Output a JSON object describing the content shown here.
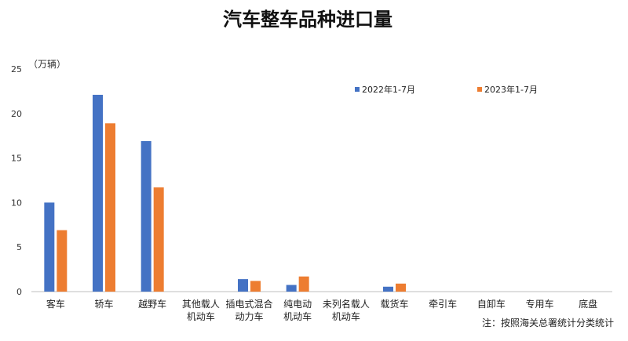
{
  "chart_data": {
    "type": "bar",
    "title": "汽车整车品种进口量",
    "unit_label": "（万辆）",
    "note": "注：按照海关总署统计分类统计",
    "ylim": [
      0,
      25
    ],
    "yticks": [
      0,
      5,
      10,
      15,
      20,
      25
    ],
    "grid": false,
    "legend_position": "top-right",
    "categories": [
      [
        "客车"
      ],
      [
        "轿车"
      ],
      [
        "越野车"
      ],
      [
        "其他载人",
        "机动车"
      ],
      [
        "插电式混合",
        "动力车"
      ],
      [
        "纯电动",
        "机动车"
      ],
      [
        "未列名载人",
        "机动车"
      ],
      [
        "载货车"
      ],
      [
        "牵引车"
      ],
      [
        "自卸车"
      ],
      [
        "专用车"
      ],
      [
        "底盘"
      ]
    ],
    "series": [
      {
        "name": "2022年1-7月",
        "color": "#4472C4",
        "values": [
          10.0,
          22.1,
          16.9,
          0,
          1.4,
          0.75,
          0,
          0.55,
          0,
          0,
          0,
          0
        ]
      },
      {
        "name": "2023年1-7月",
        "color": "#ED7D31",
        "values": [
          6.9,
          18.9,
          11.7,
          0,
          1.2,
          1.7,
          0,
          0.9,
          0,
          0,
          0,
          0
        ]
      }
    ]
  }
}
